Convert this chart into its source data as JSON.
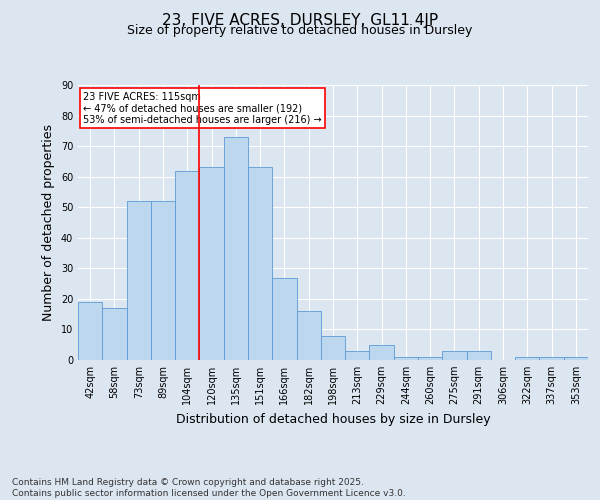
{
  "title": "23, FIVE ACRES, DURSLEY, GL11 4JP",
  "subtitle": "Size of property relative to detached houses in Dursley",
  "xlabel": "Distribution of detached houses by size in Dursley",
  "ylabel": "Number of detached properties",
  "categories": [
    "42sqm",
    "58sqm",
    "73sqm",
    "89sqm",
    "104sqm",
    "120sqm",
    "135sqm",
    "151sqm",
    "166sqm",
    "182sqm",
    "198sqm",
    "213sqm",
    "229sqm",
    "244sqm",
    "260sqm",
    "275sqm",
    "291sqm",
    "306sqm",
    "322sqm",
    "337sqm",
    "353sqm"
  ],
  "values": [
    19,
    17,
    52,
    52,
    62,
    63,
    73,
    63,
    27,
    16,
    8,
    3,
    5,
    1,
    1,
    3,
    3,
    0,
    1,
    1,
    1
  ],
  "bar_color": "#bdd7ee",
  "bar_edge_color": "#5b9bd5",
  "background_color": "#dce6f1",
  "grid_color": "#ffffff",
  "vline_x_index": 5,
  "vline_color": "#ff0000",
  "annotation_text": "23 FIVE ACRES: 115sqm\n← 47% of detached houses are smaller (192)\n53% of semi-detached houses are larger (216) →",
  "annotation_box_color": "#ffffff",
  "annotation_box_edge": "#ff0000",
  "footnote": "Contains HM Land Registry data © Crown copyright and database right 2025.\nContains public sector information licensed under the Open Government Licence v3.0.",
  "ylim": [
    0,
    90
  ],
  "yticks": [
    0,
    10,
    20,
    30,
    40,
    50,
    60,
    70,
    80,
    90
  ],
  "title_fontsize": 11,
  "subtitle_fontsize": 9,
  "label_fontsize": 9,
  "tick_fontsize": 7,
  "footnote_fontsize": 6.5,
  "annotation_fontsize": 7
}
